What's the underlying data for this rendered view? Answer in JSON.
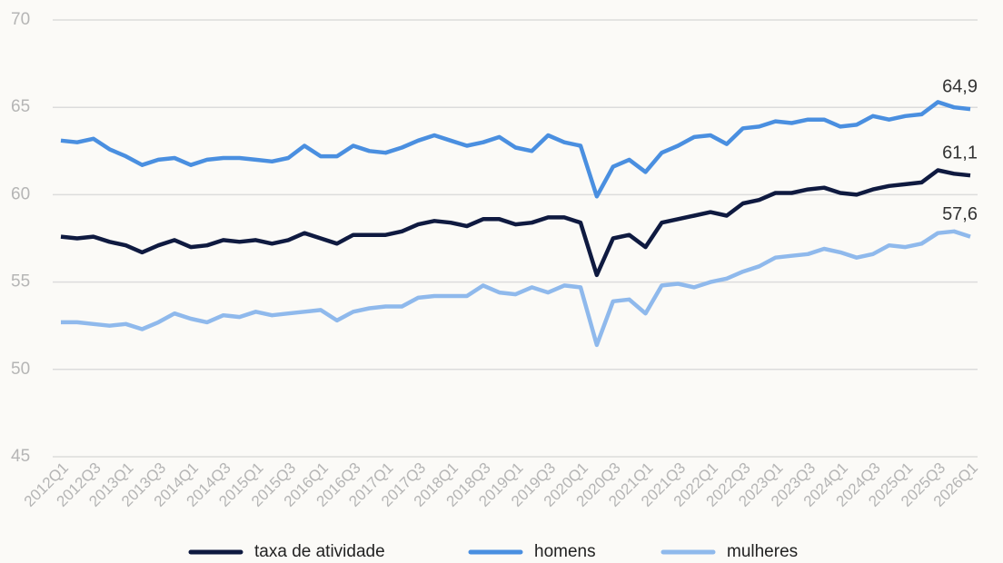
{
  "chart_data": {
    "type": "line",
    "categories": [
      "2012Q1",
      null,
      "2012Q3",
      null,
      "2013Q1",
      null,
      "2013Q3",
      null,
      "2014Q1",
      null,
      "2014Q3",
      null,
      "2015Q1",
      null,
      "2015Q3",
      null,
      "2016Q1",
      null,
      "2016Q3",
      null,
      "2017Q1",
      null,
      "2017Q3",
      null,
      "2018Q1",
      null,
      "2018Q3",
      null,
      "2019Q1",
      null,
      "2019Q3",
      null,
      "2020Q1",
      null,
      "2020Q3",
      null,
      "2021Q1",
      null,
      "2021Q3",
      null,
      "2022Q1",
      null,
      "2022Q3",
      null,
      "2023Q1",
      null,
      "2023Q3",
      null,
      "2024Q1",
      null,
      "2024Q3",
      null,
      "2025Q1",
      null,
      "2025Q3",
      null,
      "2026Q1"
    ],
    "series": [
      {
        "name": "taxa de atividade",
        "color": "#0f1a40",
        "values": [
          57.6,
          57.5,
          57.6,
          57.3,
          57.1,
          56.7,
          57.1,
          57.4,
          57.0,
          57.1,
          57.4,
          57.3,
          57.4,
          57.2,
          57.4,
          57.8,
          57.5,
          57.2,
          57.7,
          57.7,
          57.7,
          57.9,
          58.3,
          58.5,
          58.4,
          58.2,
          58.6,
          58.6,
          58.3,
          58.4,
          58.7,
          58.7,
          58.4,
          55.4,
          57.5,
          57.7,
          57.0,
          58.4,
          58.6,
          58.8,
          59.0,
          58.8,
          59.5,
          59.7,
          60.1,
          60.1,
          60.3,
          60.4,
          60.1,
          60.0,
          60.3,
          60.5,
          60.6,
          60.7,
          61.4,
          61.2,
          61.1
        ],
        "value_labels": [
          null,
          null,
          null,
          null,
          null,
          null,
          null,
          null,
          null,
          null,
          null,
          null,
          null,
          null,
          null,
          null,
          null,
          null,
          null,
          null,
          null,
          null,
          null,
          null,
          null,
          null,
          null,
          null,
          null,
          null,
          null,
          null,
          null,
          null,
          null,
          null,
          null,
          null,
          null,
          null,
          null,
          null,
          null,
          null,
          null,
          null,
          null,
          null,
          null,
          null,
          null,
          null,
          null,
          null,
          null,
          null,
          "61,1"
        ]
      },
      {
        "name": "homens",
        "color": "#4a8fe0",
        "values": [
          63.1,
          63.0,
          63.2,
          62.6,
          62.2,
          61.7,
          62.0,
          62.1,
          61.7,
          62.0,
          62.1,
          62.1,
          62.0,
          61.9,
          62.1,
          62.8,
          62.2,
          62.2,
          62.8,
          62.5,
          62.4,
          62.7,
          63.1,
          63.4,
          63.1,
          62.8,
          63.0,
          63.3,
          62.7,
          62.5,
          63.4,
          63.0,
          62.8,
          59.9,
          61.6,
          62.0,
          61.3,
          62.4,
          62.8,
          63.3,
          63.4,
          62.9,
          63.8,
          63.9,
          64.2,
          64.1,
          64.3,
          64.3,
          63.9,
          64.0,
          64.5,
          64.3,
          64.5,
          64.6,
          65.3,
          65.0,
          64.9
        ],
        "value_labels": [
          null,
          null,
          null,
          null,
          null,
          null,
          null,
          null,
          null,
          null,
          null,
          null,
          null,
          null,
          null,
          null,
          null,
          null,
          null,
          null,
          null,
          null,
          null,
          null,
          null,
          null,
          null,
          null,
          null,
          null,
          null,
          null,
          null,
          null,
          null,
          null,
          null,
          null,
          null,
          null,
          null,
          null,
          null,
          null,
          null,
          null,
          null,
          null,
          null,
          null,
          null,
          null,
          null,
          null,
          null,
          null,
          "64,9"
        ]
      },
      {
        "name": "mulheres",
        "color": "#8fb9ec",
        "values": [
          52.7,
          52.7,
          52.6,
          52.5,
          52.6,
          52.3,
          52.7,
          53.2,
          52.9,
          52.7,
          53.1,
          53.0,
          53.3,
          53.1,
          53.2,
          53.3,
          53.4,
          52.8,
          53.3,
          53.5,
          53.6,
          53.6,
          54.1,
          54.2,
          54.2,
          54.2,
          54.8,
          54.4,
          54.3,
          54.7,
          54.4,
          54.8,
          54.7,
          51.4,
          53.9,
          54.0,
          53.2,
          54.8,
          54.9,
          54.7,
          55.0,
          55.2,
          55.6,
          55.9,
          56.4,
          56.5,
          56.6,
          56.9,
          56.7,
          56.4,
          56.6,
          57.1,
          57.0,
          57.2,
          57.8,
          57.9,
          57.6
        ],
        "value_labels": [
          null,
          null,
          null,
          null,
          null,
          null,
          null,
          null,
          null,
          null,
          null,
          null,
          null,
          null,
          null,
          null,
          null,
          null,
          null,
          null,
          null,
          null,
          null,
          null,
          null,
          null,
          null,
          null,
          null,
          null,
          null,
          null,
          null,
          null,
          null,
          null,
          null,
          null,
          null,
          null,
          null,
          null,
          null,
          null,
          null,
          null,
          null,
          null,
          null,
          null,
          null,
          null,
          null,
          null,
          null,
          null,
          "57,6"
        ]
      }
    ],
    "ylim": [
      45,
      70
    ],
    "yticks": [
      45,
      50,
      55,
      60,
      65,
      70
    ],
    "grid": true,
    "legend": "bottom"
  }
}
